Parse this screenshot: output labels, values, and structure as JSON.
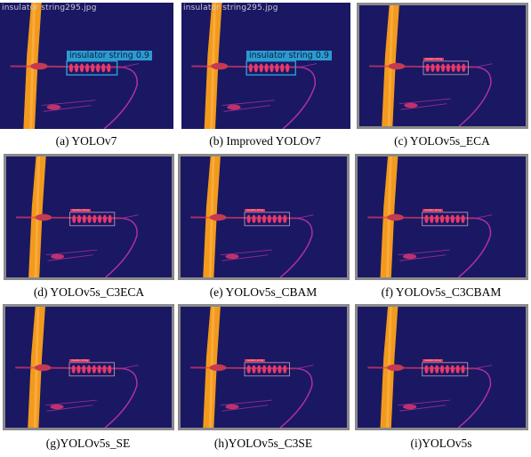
{
  "panels": [
    {
      "caption": "(a) YOLOv7",
      "filename": "insulator string295.jpg",
      "detection": "insulator string 0.9"
    },
    {
      "caption": "(b) Improved YOLOv7",
      "filename": "insulator string295.jpg",
      "detection": "insulator string 0.9"
    },
    {
      "caption": "(c) YOLOv5s_ECA",
      "filename": "",
      "detection": "insulator string"
    },
    {
      "caption": "(d) YOLOv5s_C3ECA",
      "filename": "",
      "detection": "insulator string"
    },
    {
      "caption": "(e) YOLOv5s_CBAM",
      "filename": "",
      "detection": "insulator string"
    },
    {
      "caption": "(f) YOLOv5s_C3CBAM",
      "filename": "",
      "detection": "insulator string"
    },
    {
      "caption": "(g)YOLOv5s_SE",
      "filename": "",
      "detection": "insulator string"
    },
    {
      "caption": "(h)YOLOv5s_C3SE",
      "filename": "",
      "detection": "insulator string"
    },
    {
      "caption": "(i)YOLOv5s",
      "filename": "",
      "detection": "insulator string"
    }
  ],
  "colors": {
    "background": "#1a1863",
    "pole": "#f29a1c",
    "insulator": "#e83a6a",
    "wire": "#b02fa0",
    "box_v7": "#2b9bd2",
    "box_v5": "#d8a8c8"
  }
}
